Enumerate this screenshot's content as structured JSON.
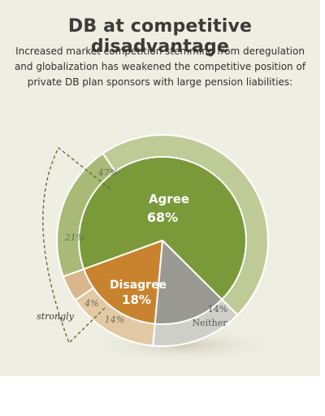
{
  "title": "DB at competitive disadvantage",
  "subtitle": "Increased market competition stemming from deregulation and globalization has weakened the competitive position of private DB plan sponsors with large pension liabilities:",
  "chart_data": {
    "type": "pie",
    "title": "DB at competitive disadvantage",
    "slices": [
      {
        "label": "Agree",
        "value": 68,
        "display": "68%",
        "color": "#7a9a3a"
      },
      {
        "label": "Neither",
        "value": 14,
        "display": "14%",
        "color": "#9a9a92"
      },
      {
        "label": "Disagree",
        "value": 18,
        "display": "18%",
        "color": "#c9832e"
      }
    ],
    "outer_ring": {
      "agree": [
        {
          "label": "47%",
          "value": 47,
          "color": "#bfcb96"
        },
        {
          "label": "21%",
          "value": 21,
          "color": "#a9ba76"
        }
      ],
      "neither": [
        {
          "label": "14%",
          "value": 14,
          "color": "#cfcfca"
        }
      ],
      "disagree": [
        {
          "label": "14%",
          "value": 14,
          "color": "#e3c9a3"
        },
        {
          "label": "4%",
          "value": 4,
          "color": "#d8b78c"
        }
      ]
    },
    "annotations": {
      "bracket_label": "strongly"
    }
  }
}
